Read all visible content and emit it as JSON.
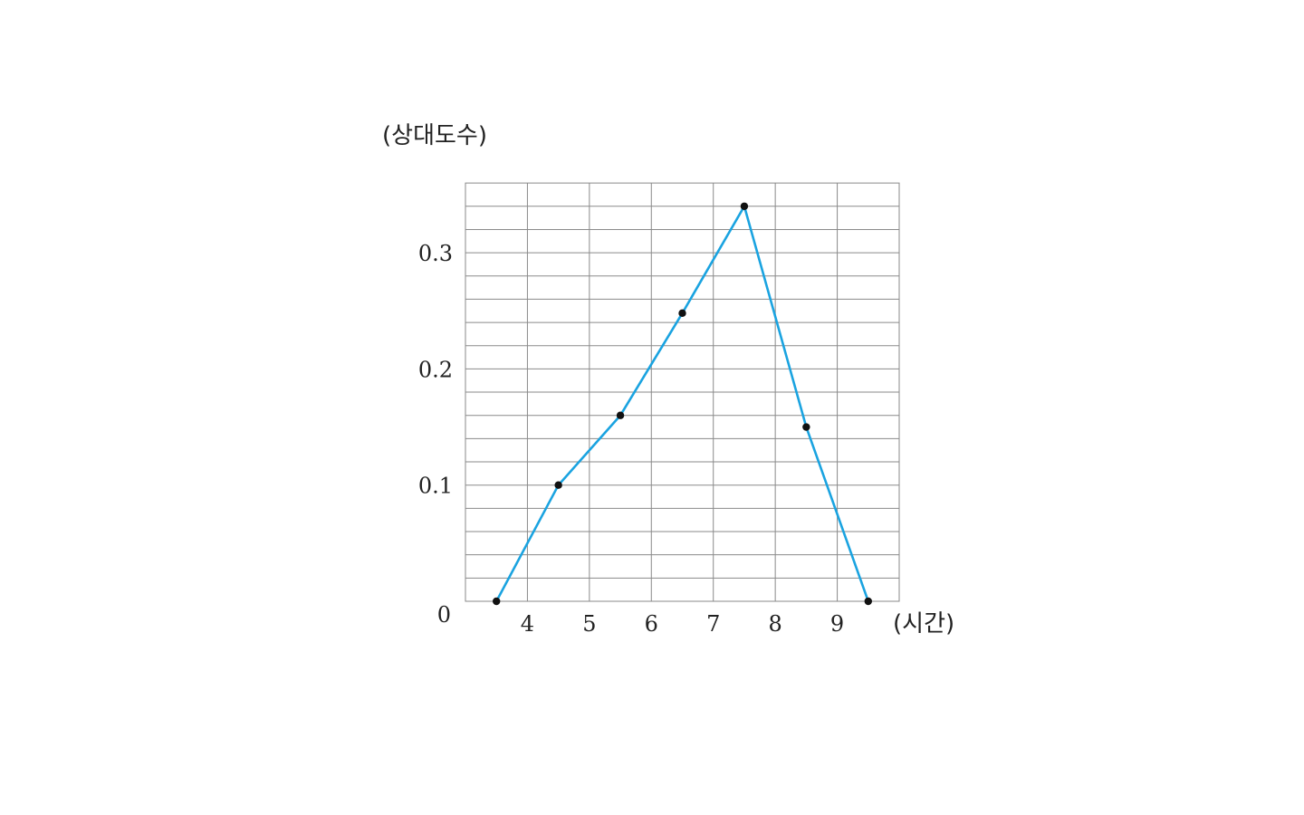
{
  "chart_data": {
    "type": "line",
    "title": "",
    "xlabel": "(시간)",
    "ylabel": "(상대도수)",
    "origin_label": "0",
    "x_ticks": [
      4,
      5,
      6,
      7,
      8,
      9
    ],
    "x_tick_labels": [
      "4",
      "5",
      "6",
      "7",
      "8",
      "9"
    ],
    "y_ticks": [
      0.1,
      0.2,
      0.3
    ],
    "y_tick_labels": [
      "0.1",
      "0.2",
      "0.3"
    ],
    "xlim": [
      3,
      10
    ],
    "ylim": [
      0,
      0.36
    ],
    "grid": true,
    "grid_x_step": 1,
    "grid_y_step": 0.02,
    "series": [
      {
        "x": [
          3.5,
          4.5,
          5.5,
          6.5,
          7.5,
          8.5,
          9.5
        ],
        "values": [
          0,
          0.1,
          0.16,
          0.248,
          0.34,
          0.15,
          0
        ],
        "color": "#1aa3e0",
        "marker_color": "#111111"
      }
    ]
  }
}
